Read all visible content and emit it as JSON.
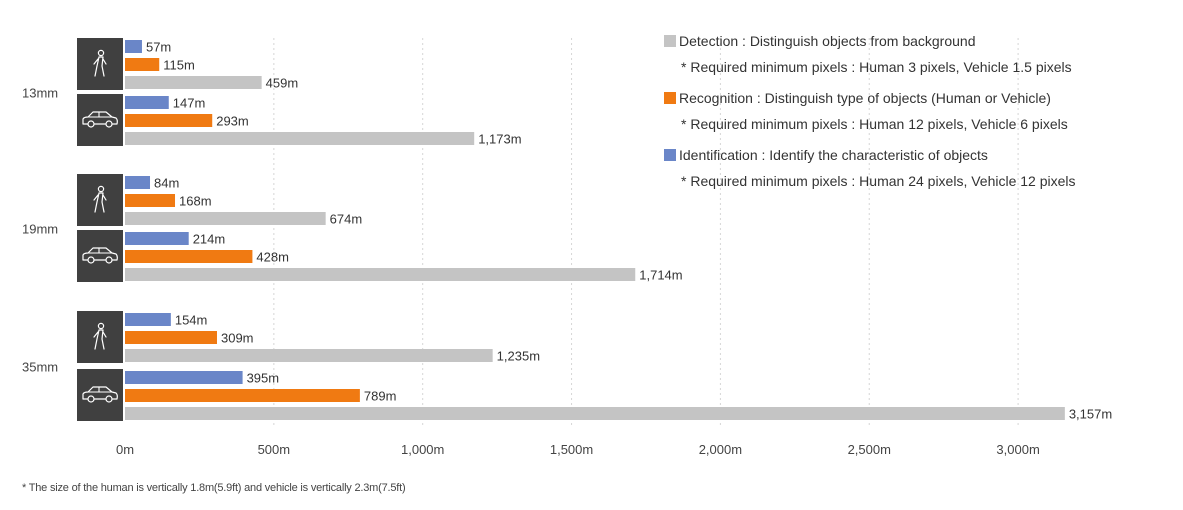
{
  "chart_data": {
    "type": "bar",
    "orientation": "horizontal",
    "xlim": [
      0,
      3157
    ],
    "x_ticks": [
      0,
      500,
      1000,
      1500,
      2000,
      2500,
      3000
    ],
    "x_tick_labels": [
      "0m",
      "500m",
      "1,000m",
      "1,500m",
      "2,000m",
      "2,500m",
      "3,000m"
    ],
    "grid": "vertical-dashed",
    "legend_position": "top-right",
    "series": [
      {
        "key": "identification",
        "name": "Identification : Identify the characteristic of objects",
        "note": "* Required minimum pixels : Human 24 pixels, Vehicle 12 pixels",
        "color": "#6a86c8"
      },
      {
        "key": "recognition",
        "name": "Recognition : Distinguish type of objects (Human or Vehicle)",
        "note": "* Required minimum pixels : Human 12 pixels, Vehicle 6 pixels",
        "color": "#f07a12"
      },
      {
        "key": "detection",
        "name": "Detection : Distinguish objects from background",
        "note": "* Required minimum pixels : Human 3 pixels, Vehicle 1.5 pixels",
        "color": "#c4c4c4"
      }
    ],
    "legend_order": [
      "detection",
      "recognition",
      "identification"
    ],
    "groups": [
      {
        "lens": "13mm",
        "targets": [
          {
            "type": "human",
            "icon": "human-icon",
            "values": [
              57,
              115,
              459
            ],
            "labels": [
              "57m",
              "115m",
              "459m"
            ]
          },
          {
            "type": "vehicle",
            "icon": "car-icon",
            "values": [
              147,
              293,
              1173
            ],
            "labels": [
              "147m",
              "293m",
              "1,173m"
            ]
          }
        ]
      },
      {
        "lens": "19mm",
        "targets": [
          {
            "type": "human",
            "icon": "human-icon",
            "values": [
              84,
              168,
              674
            ],
            "labels": [
              "84m",
              "168m",
              "674m"
            ]
          },
          {
            "type": "vehicle",
            "icon": "car-icon",
            "values": [
              214,
              428,
              1714
            ],
            "labels": [
              "214m",
              "428m",
              "1,714m"
            ]
          }
        ]
      },
      {
        "lens": "35mm",
        "targets": [
          {
            "type": "human",
            "icon": "human-icon",
            "values": [
              154,
              309,
              1235
            ],
            "labels": [
              "154m",
              "309m",
              "1,235m"
            ]
          },
          {
            "type": "vehicle",
            "icon": "car-icon",
            "values": [
              395,
              789,
              3157
            ],
            "labels": [
              "395m",
              "789m",
              "3,157m"
            ]
          }
        ]
      }
    ]
  },
  "footnote": "* The size of the human is vertically 1.8m(5.9ft) and vehicle is vertically 2.3m(7.5ft)"
}
